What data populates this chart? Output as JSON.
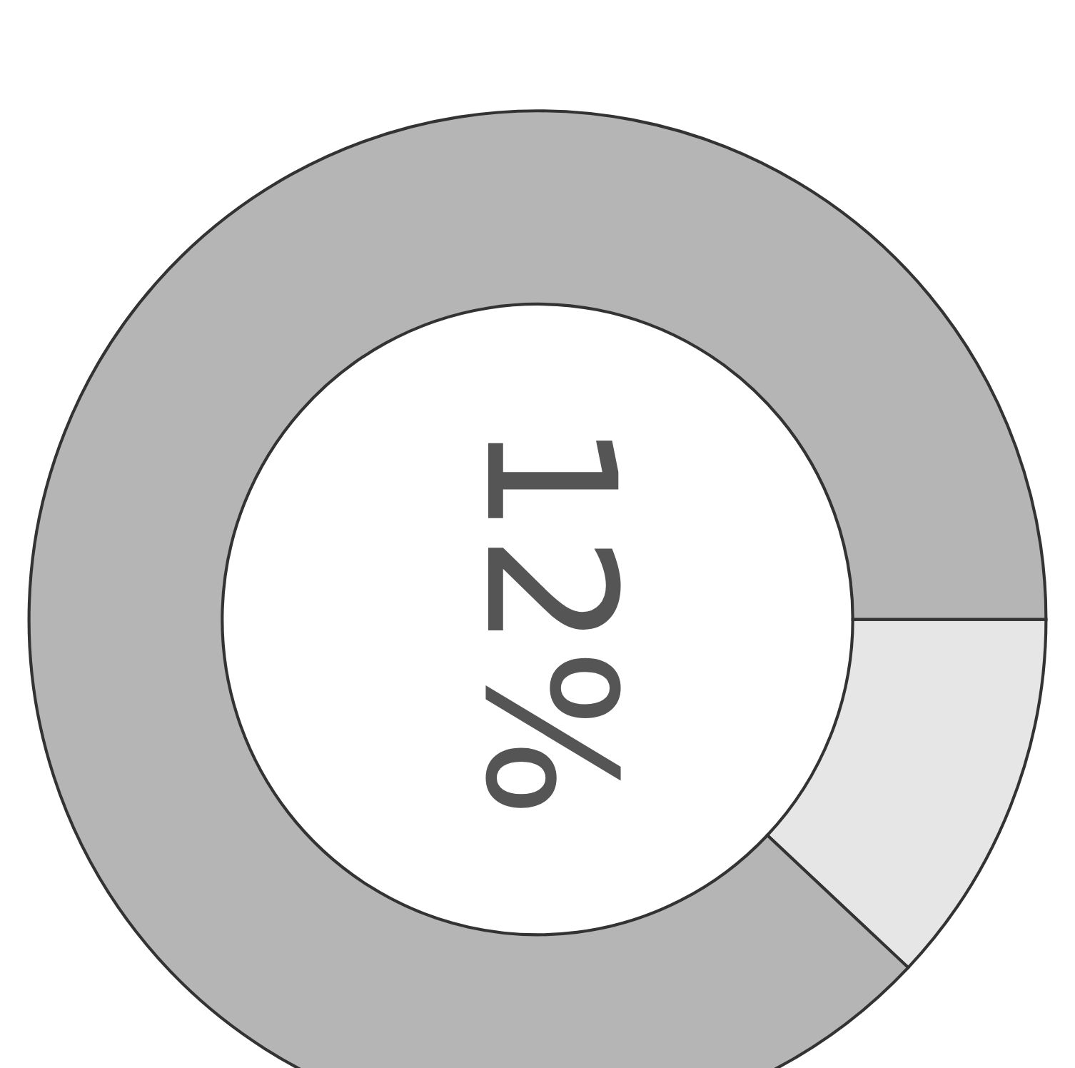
{
  "chart_data": {
    "type": "donut",
    "categories": [
      null,
      null
    ],
    "values": [
      12,
      88
    ],
    "colors": [
      "#e6e6e6",
      "#b5b5b5"
    ],
    "annotations": [
      "12%"
    ]
  }
}
